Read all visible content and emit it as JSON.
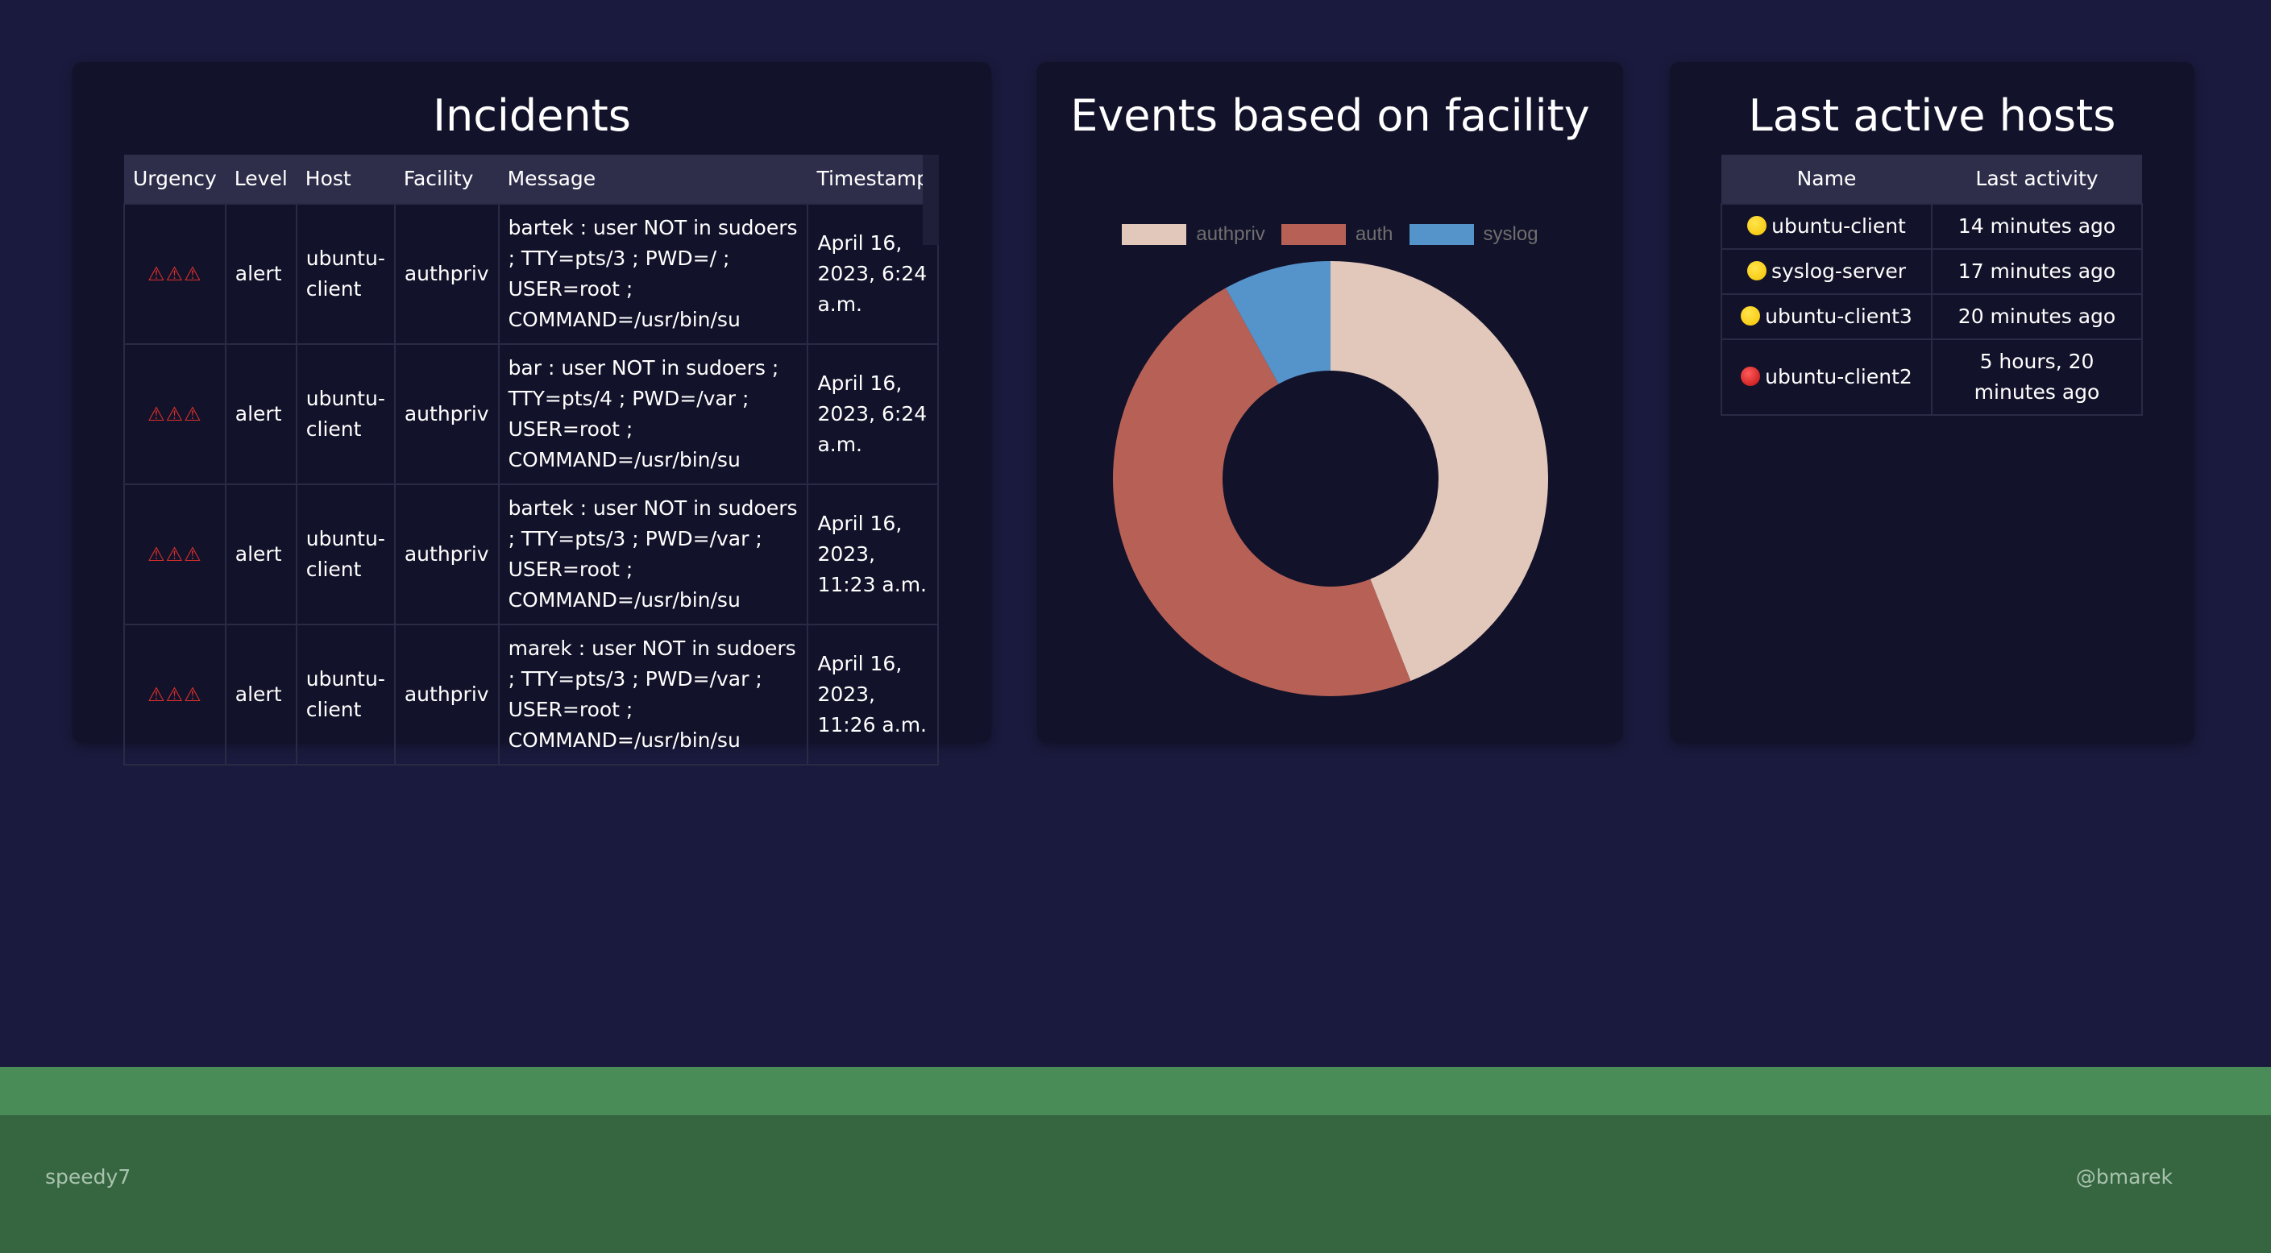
{
  "incidents": {
    "title": "Incidents",
    "columns": [
      "Urgency",
      "Level",
      "Host",
      "Facility",
      "Message",
      "Timestamp"
    ],
    "rows": [
      {
        "urgency": "⚠⚠⚠",
        "level": "alert",
        "host": "ubuntu-client",
        "facility": "authpriv",
        "message": "bartek : user NOT in sudoers ; TTY=pts/3 ; PWD=/ ; USER=root ; COMMAND=/usr/bin/su",
        "timestamp": "April 16, 2023, 6:24 a.m."
      },
      {
        "urgency": "⚠⚠⚠",
        "level": "alert",
        "host": "ubuntu-client",
        "facility": "authpriv",
        "message": "bar : user NOT in sudoers ; TTY=pts/4 ; PWD=/var ; USER=root ; COMMAND=/usr/bin/su",
        "timestamp": "April 16, 2023, 6:24 a.m."
      },
      {
        "urgency": "⚠⚠⚠",
        "level": "alert",
        "host": "ubuntu-client",
        "facility": "authpriv",
        "message": "bartek : user NOT in sudoers ; TTY=pts/3 ; PWD=/var ; USER=root ; COMMAND=/usr/bin/su",
        "timestamp": "April 16, 2023, 11:23 a.m."
      },
      {
        "urgency": "⚠⚠⚠",
        "level": "alert",
        "host": "ubuntu-client",
        "facility": "authpriv",
        "message": "marek : user NOT in sudoers ; TTY=pts/3 ; PWD=/var ; USER=root ; COMMAND=/usr/bin/su",
        "timestamp": "April 16, 2023, 11:26 a.m."
      }
    ]
  },
  "chart": {
    "title": "Events based on facility"
  },
  "chart_data": {
    "type": "pie",
    "title": "Events based on facility",
    "donut": true,
    "legend_position": "top",
    "labels": [
      "authpriv",
      "auth",
      "syslog"
    ],
    "values": [
      44,
      48,
      8
    ],
    "unit": "percent (estimated)",
    "colors": [
      "#e2c7bb",
      "#b76156",
      "#5593cb"
    ]
  },
  "hosts": {
    "title": "Last active hosts",
    "columns": [
      "Name",
      "Last activity"
    ],
    "rows": [
      {
        "name": "ubuntu-client",
        "activity": "14 minutes ago",
        "status": "yellow"
      },
      {
        "name": "syslog-server",
        "activity": "17 minutes ago",
        "status": "yellow"
      },
      {
        "name": "ubuntu-client3",
        "activity": "20 minutes ago",
        "status": "yellow"
      },
      {
        "name": "ubuntu-client2",
        "activity": "5 hours, 20 minutes ago",
        "status": "red"
      }
    ]
  },
  "footer": {
    "left": "speedy7",
    "right": "@bmarek"
  }
}
